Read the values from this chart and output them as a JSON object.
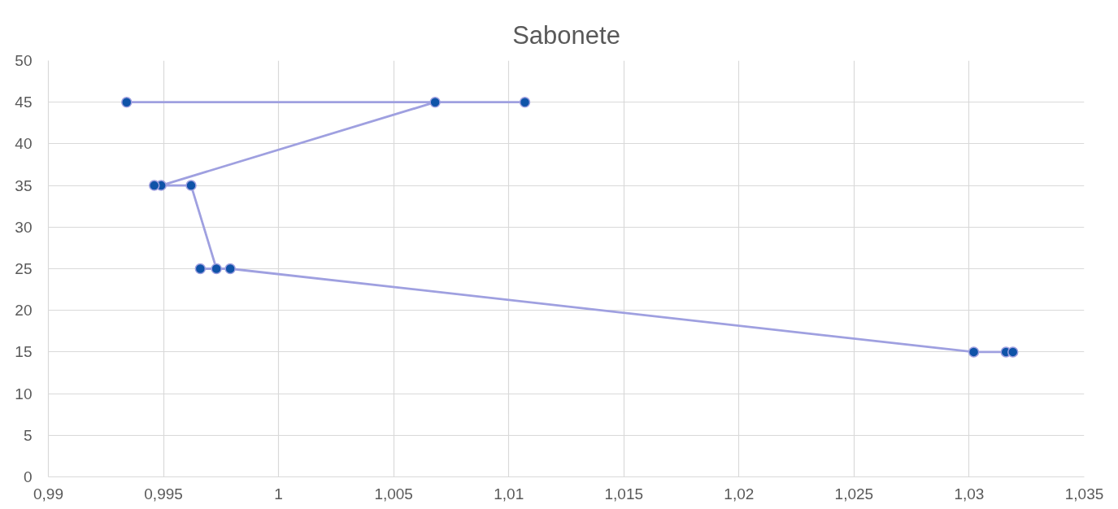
{
  "chart_data": {
    "type": "scatter",
    "title": "Sabonete",
    "x": [
      0.9934,
      1.0107,
      1.0068,
      0.9949,
      0.9946,
      0.9962,
      0.9973,
      0.9966,
      0.9979,
      1.0302,
      1.0316,
      1.0319
    ],
    "series": [
      {
        "type": "line",
        "marker": "none",
        "color": "#9fa0e0",
        "values": [
          45,
          45,
          45,
          35,
          35,
          35,
          25,
          25,
          25,
          15,
          15,
          15
        ]
      },
      {
        "marker": "circle",
        "color": "#0f53a8",
        "values": [
          45,
          45,
          45,
          35,
          35,
          35,
          25,
          25,
          25,
          15,
          15,
          15
        ]
      }
    ],
    "xlim": [
      0.99,
      1.035
    ],
    "xticks": [
      {
        "value": 0.99,
        "label": "0,99"
      },
      {
        "value": 0.995,
        "label": "0,995"
      },
      1,
      {
        "value": 1.005,
        "label": "1,005"
      },
      {
        "value": 1.01,
        "label": "1,01"
      },
      {
        "value": 1.015,
        "label": "1,015"
      },
      {
        "value": 1.02,
        "label": "1,02"
      },
      {
        "value": 1.025,
        "label": "1,025"
      },
      {
        "value": 1.03,
        "label": "1,03"
      },
      {
        "value": 1.035,
        "label": "1,035"
      }
    ],
    "ylim": [
      0,
      50
    ],
    "yticks": [
      0,
      5,
      10,
      15,
      20,
      25,
      30,
      35,
      40,
      45,
      50
    ],
    "grid": true,
    "line_style": "solid"
  }
}
